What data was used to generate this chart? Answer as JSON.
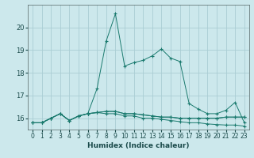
{
  "xlabel": "Humidex (Indice chaleur)",
  "bg_color": "#cce8ec",
  "grid_color": "#aacdd4",
  "line_color": "#1a7a6e",
  "x_values": [
    0,
    1,
    2,
    3,
    4,
    5,
    6,
    7,
    8,
    9,
    10,
    11,
    12,
    13,
    14,
    15,
    16,
    17,
    18,
    19,
    20,
    21,
    22,
    23
  ],
  "series": [
    [
      15.8,
      15.8,
      16.0,
      16.2,
      15.9,
      16.1,
      16.2,
      17.3,
      19.4,
      20.6,
      18.3,
      18.45,
      18.55,
      18.75,
      19.05,
      18.65,
      18.5,
      16.65,
      16.4,
      16.2,
      16.2,
      16.35,
      16.7,
      15.8
    ],
    [
      15.8,
      15.8,
      16.0,
      16.2,
      15.9,
      16.1,
      16.2,
      16.25,
      16.3,
      16.3,
      16.2,
      16.2,
      16.15,
      16.1,
      16.05,
      16.05,
      16.0,
      16.0,
      16.0,
      16.0,
      16.0,
      16.05,
      16.05,
      16.05
    ],
    [
      15.8,
      15.8,
      16.0,
      16.2,
      15.9,
      16.1,
      16.2,
      16.25,
      16.3,
      16.3,
      16.2,
      16.2,
      16.15,
      16.1,
      16.05,
      16.05,
      16.0,
      16.0,
      16.0,
      16.0,
      16.0,
      16.05,
      16.05,
      16.05
    ],
    [
      15.8,
      15.8,
      16.0,
      16.2,
      15.9,
      16.1,
      16.2,
      16.25,
      16.2,
      16.2,
      16.1,
      16.1,
      16.0,
      16.0,
      15.95,
      15.9,
      15.85,
      15.8,
      15.8,
      15.75,
      15.72,
      15.7,
      15.7,
      15.65
    ]
  ],
  "ylim": [
    15.5,
    21.0
  ],
  "yticks": [
    16,
    17,
    18,
    19,
    20
  ],
  "xticks": [
    0,
    1,
    2,
    3,
    4,
    5,
    6,
    7,
    8,
    9,
    10,
    11,
    12,
    13,
    14,
    15,
    16,
    17,
    18,
    19,
    20,
    21,
    22,
    23
  ],
  "xlabel_fontsize": 6.5,
  "tick_fontsize": 5.5
}
